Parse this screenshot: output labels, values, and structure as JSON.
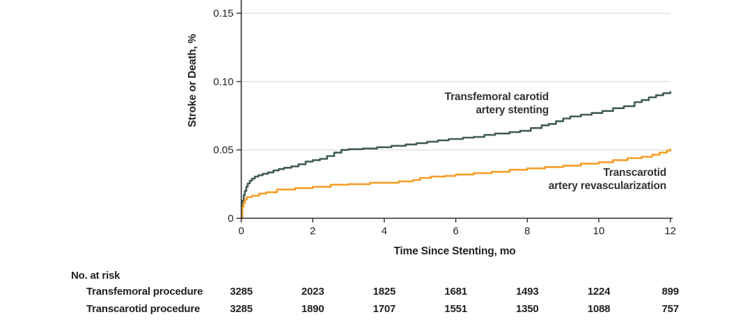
{
  "chart_data": {
    "type": "line",
    "subtype": "kaplan-meier-step",
    "title": "",
    "xlabel": "Time Since Stenting, mo",
    "ylabel": "Stroke or Death, %",
    "xlim": [
      0,
      12.1
    ],
    "ylim": [
      0,
      0.16
    ],
    "x_ticks": [
      0,
      2,
      4,
      6,
      8,
      10,
      12
    ],
    "x_tick_labels": [
      "0",
      "2",
      "4",
      "6",
      "8",
      "10",
      "12"
    ],
    "y_ticks": [
      0,
      0.05,
      0.1,
      0.15
    ],
    "y_tick_labels": [
      "0",
      "0.05",
      "0.10",
      "0.15"
    ],
    "grid": "horizontal gridlines at 0.05, 0.10, 0.15",
    "legend_position": "inline-annotations",
    "colors": {
      "transfemoral_line": "#405c56",
      "transcarotid_line": "#f49d25",
      "gridline": "#d4d4d4",
      "axis": "#2b2b2b",
      "text": "#222222"
    },
    "series": [
      {
        "name": "Transfemoral carotid artery stenting",
        "color": "#405c56",
        "step": true,
        "points": [
          [
            0,
            0
          ],
          [
            0.02,
            0.008
          ],
          [
            0.04,
            0.013
          ],
          [
            0.07,
            0.017
          ],
          [
            0.1,
            0.02
          ],
          [
            0.14,
            0.023
          ],
          [
            0.18,
            0.0255
          ],
          [
            0.24,
            0.0275
          ],
          [
            0.3,
            0.029
          ],
          [
            0.38,
            0.0305
          ],
          [
            0.48,
            0.0315
          ],
          [
            0.6,
            0.0325
          ],
          [
            0.75,
            0.0335
          ],
          [
            0.9,
            0.035
          ],
          [
            1.05,
            0.036
          ],
          [
            1.2,
            0.037
          ],
          [
            1.4,
            0.038
          ],
          [
            1.6,
            0.0395
          ],
          [
            1.8,
            0.0415
          ],
          [
            2.0,
            0.0425
          ],
          [
            2.2,
            0.0435
          ],
          [
            2.4,
            0.0455
          ],
          [
            2.6,
            0.048
          ],
          [
            2.8,
            0.05
          ],
          [
            3.0,
            0.0505
          ],
          [
            3.4,
            0.051
          ],
          [
            3.8,
            0.052
          ],
          [
            4.2,
            0.053
          ],
          [
            4.6,
            0.054
          ],
          [
            4.9,
            0.055
          ],
          [
            5.2,
            0.056
          ],
          [
            5.5,
            0.057
          ],
          [
            5.8,
            0.058
          ],
          [
            6.2,
            0.059
          ],
          [
            6.5,
            0.0595
          ],
          [
            6.8,
            0.061
          ],
          [
            7.1,
            0.062
          ],
          [
            7.5,
            0.063
          ],
          [
            7.8,
            0.064
          ],
          [
            8.1,
            0.066
          ],
          [
            8.4,
            0.068
          ],
          [
            8.6,
            0.069
          ],
          [
            8.8,
            0.071
          ],
          [
            9.0,
            0.073
          ],
          [
            9.2,
            0.0745
          ],
          [
            9.5,
            0.0758
          ],
          [
            9.8,
            0.077
          ],
          [
            10.1,
            0.0785
          ],
          [
            10.4,
            0.0805
          ],
          [
            10.7,
            0.082
          ],
          [
            11.0,
            0.085
          ],
          [
            11.2,
            0.0865
          ],
          [
            11.4,
            0.0885
          ],
          [
            11.6,
            0.09
          ],
          [
            11.8,
            0.0915
          ],
          [
            12.0,
            0.093
          ]
        ]
      },
      {
        "name": "Transcarotid artery revascularization",
        "color": "#f49d25",
        "step": true,
        "points": [
          [
            0,
            0
          ],
          [
            0.03,
            0.008
          ],
          [
            0.06,
            0.011
          ],
          [
            0.1,
            0.0135
          ],
          [
            0.15,
            0.0155
          ],
          [
            0.3,
            0.0165
          ],
          [
            0.5,
            0.018
          ],
          [
            0.7,
            0.019
          ],
          [
            1.0,
            0.021
          ],
          [
            1.5,
            0.022
          ],
          [
            2.0,
            0.023
          ],
          [
            2.5,
            0.0245
          ],
          [
            3.0,
            0.025
          ],
          [
            3.6,
            0.026
          ],
          [
            4.4,
            0.027
          ],
          [
            4.8,
            0.028
          ],
          [
            5.0,
            0.0295
          ],
          [
            5.3,
            0.0305
          ],
          [
            5.7,
            0.031
          ],
          [
            6.0,
            0.032
          ],
          [
            6.5,
            0.033
          ],
          [
            7.0,
            0.034
          ],
          [
            7.5,
            0.0355
          ],
          [
            8.0,
            0.0365
          ],
          [
            8.5,
            0.0375
          ],
          [
            9.0,
            0.0385
          ],
          [
            9.5,
            0.04
          ],
          [
            10.0,
            0.041
          ],
          [
            10.4,
            0.0425
          ],
          [
            10.8,
            0.044
          ],
          [
            11.2,
            0.045
          ],
          [
            11.5,
            0.0465
          ],
          [
            11.7,
            0.048
          ],
          [
            11.9,
            0.0495
          ],
          [
            12.0,
            0.051
          ]
        ]
      }
    ],
    "annotations": [
      {
        "series": "transfemoral",
        "lines": [
          "Transfemoral carotid",
          "artery stenting"
        ]
      },
      {
        "series": "transcarotid",
        "lines": [
          "Transcarotid",
          "artery revascularization"
        ]
      }
    ]
  },
  "risk_table": {
    "title": "No. at risk",
    "time_points": [
      0,
      2,
      4,
      6,
      8,
      10,
      12
    ],
    "rows": [
      {
        "label": "Transfemoral procedure",
        "values": [
          "3285",
          "2023",
          "1825",
          "1681",
          "1493",
          "1224",
          "899"
        ]
      },
      {
        "label": "Transcarotid procedure",
        "values": [
          "3285",
          "1890",
          "1707",
          "1551",
          "1350",
          "1088",
          "757"
        ]
      }
    ]
  }
}
